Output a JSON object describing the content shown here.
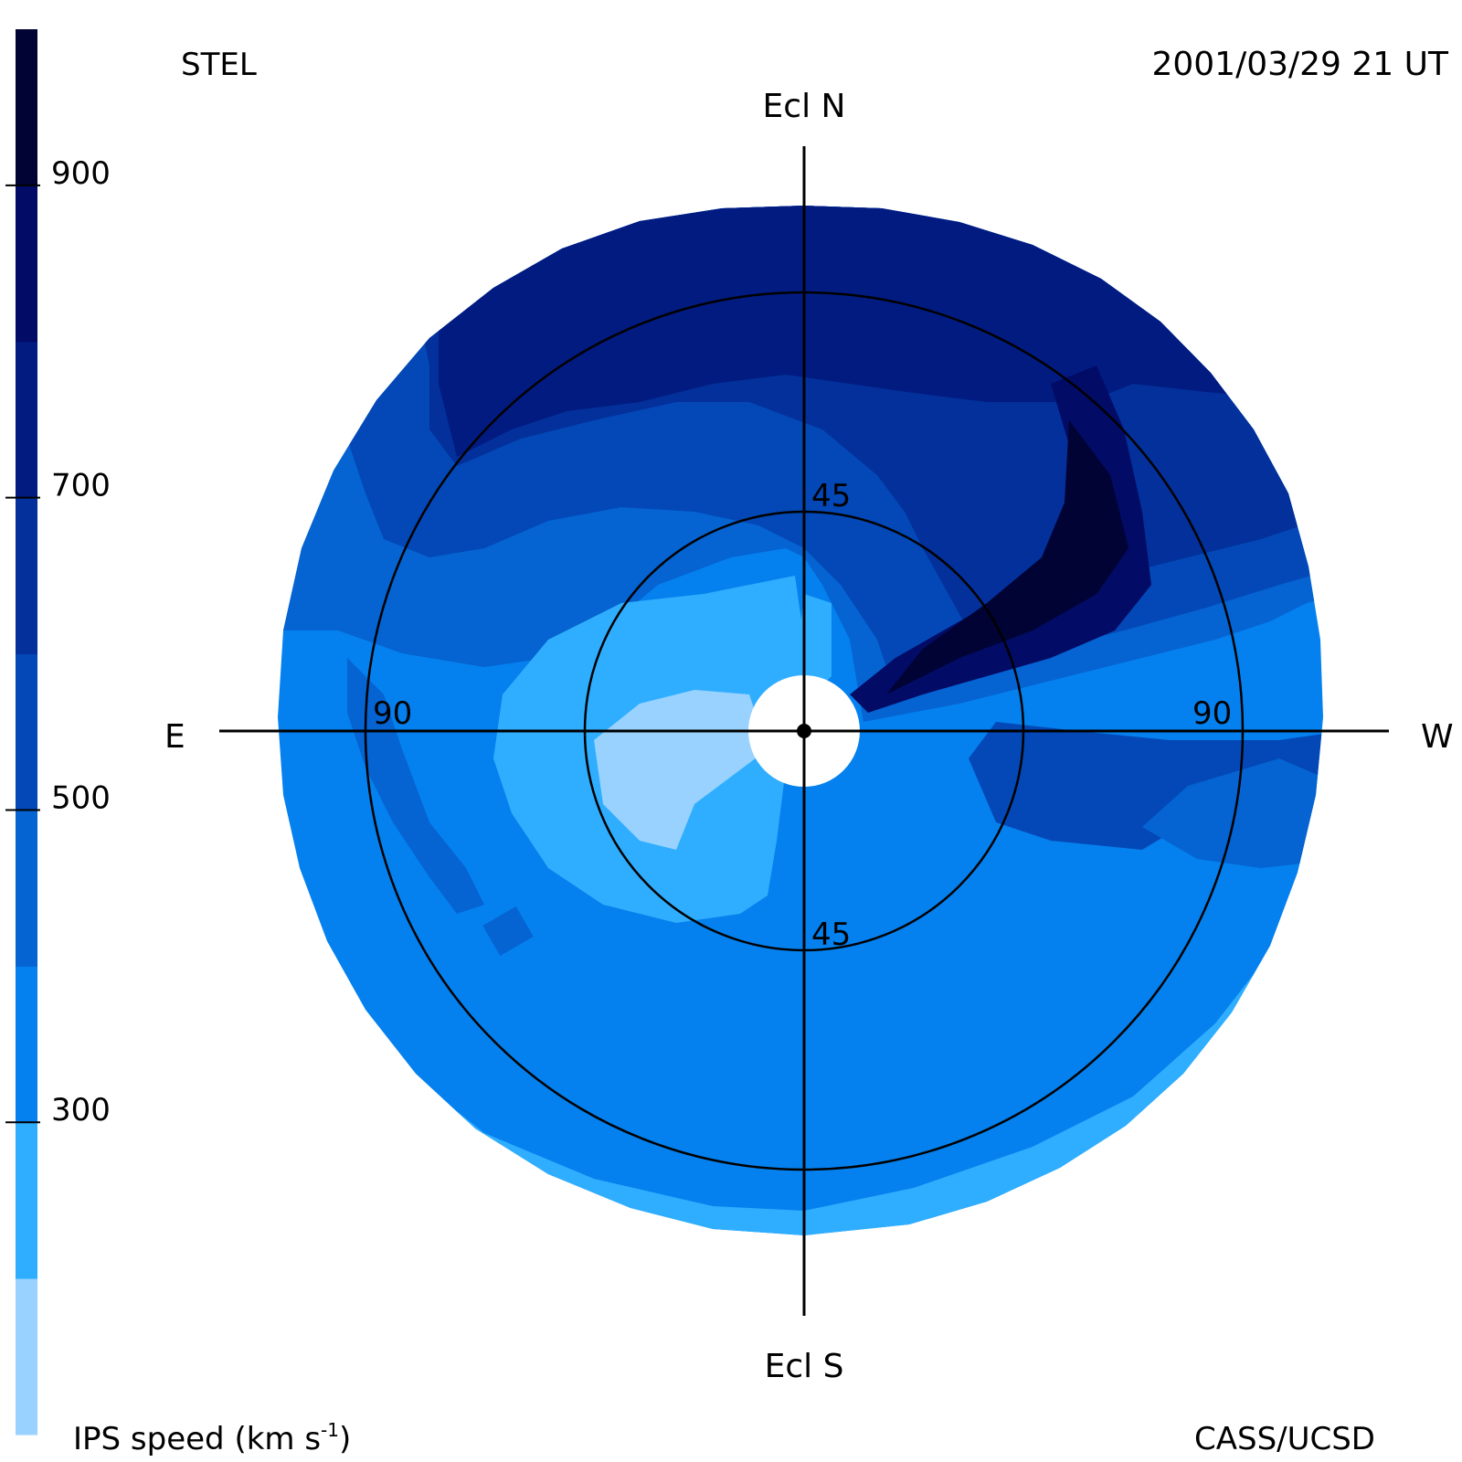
{
  "header": {
    "left_label": "STEL",
    "right_label": "2001/03/29 21 UT"
  },
  "footer": {
    "left_label_main": "IPS speed (km s",
    "left_label_sup": "-1",
    "left_label_end": ")",
    "right_label": "CASS/UCSD"
  },
  "compass": {
    "north": "Ecl N",
    "south": "Ecl S",
    "east": "E",
    "west": "W"
  },
  "rings": {
    "inner_top_label": "45",
    "inner_bottom_label": "45",
    "outer_left_label": "90",
    "outer_right_label": "90"
  },
  "colorbar": {
    "title": "IPS speed (km s-1)",
    "min": 100,
    "max": 1000,
    "ticks": [
      {
        "value": 900,
        "label": "900"
      },
      {
        "value": 700,
        "label": "700"
      },
      {
        "value": 500,
        "label": "500"
      },
      {
        "value": 300,
        "label": "300"
      }
    ],
    "bands": [
      {
        "from": 100,
        "to": 200,
        "color": "#99d2ff"
      },
      {
        "from": 200,
        "to": 300,
        "color": "#2faeff"
      },
      {
        "from": 300,
        "to": 400,
        "color": "#0481ee"
      },
      {
        "from": 400,
        "to": 500,
        "color": "#0563d2"
      },
      {
        "from": 500,
        "to": 600,
        "color": "#0348b6"
      },
      {
        "from": 600,
        "to": 700,
        "color": "#03309a"
      },
      {
        "from": 700,
        "to": 800,
        "color": "#011b81"
      },
      {
        "from": 800,
        "to": 900,
        "color": "#020b66"
      },
      {
        "from": 900,
        "to": 1000,
        "color": "#000333"
      }
    ]
  }
}
